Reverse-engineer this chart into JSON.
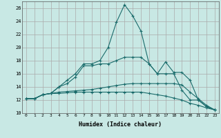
{
  "xlabel": "Humidex (Indice chaleur)",
  "bg_color": "#c8e8e4",
  "grid_color": "#aaaaaa",
  "line_color": "#1a6b6b",
  "xlim": [
    -0.5,
    23.5
  ],
  "ylim": [
    10,
    27
  ],
  "yticks": [
    10,
    12,
    14,
    16,
    18,
    20,
    22,
    24,
    26
  ],
  "xticks": [
    0,
    1,
    2,
    3,
    4,
    5,
    6,
    7,
    8,
    9,
    10,
    11,
    12,
    13,
    14,
    15,
    16,
    17,
    18,
    19,
    20,
    21,
    22,
    23
  ],
  "series": [
    [
      12.2,
      12.2,
      12.8,
      13.0,
      14.0,
      15.0,
      16.0,
      17.5,
      17.5,
      18.0,
      20.0,
      23.8,
      26.5,
      24.8,
      22.5,
      17.5,
      16.0,
      17.8,
      16.2,
      16.2,
      15.0,
      12.0,
      11.0,
      10.5
    ],
    [
      12.2,
      12.2,
      12.8,
      13.0,
      14.0,
      14.5,
      15.5,
      17.2,
      17.2,
      17.5,
      17.5,
      18.0,
      18.5,
      18.5,
      18.5,
      17.5,
      16.0,
      16.0,
      16.0,
      13.5,
      12.0,
      12.0,
      11.0,
      10.5
    ],
    [
      12.2,
      12.2,
      12.8,
      13.0,
      13.2,
      13.3,
      13.4,
      13.5,
      13.6,
      13.8,
      14.0,
      14.2,
      14.4,
      14.5,
      14.5,
      14.5,
      14.5,
      14.5,
      14.5,
      14.3,
      13.2,
      12.2,
      11.2,
      10.5
    ],
    [
      12.2,
      12.2,
      12.8,
      13.0,
      13.0,
      13.1,
      13.2,
      13.2,
      13.2,
      13.2,
      13.2,
      13.2,
      13.2,
      13.2,
      13.2,
      13.0,
      12.8,
      12.6,
      12.3,
      12.0,
      11.5,
      11.2,
      10.8,
      10.5
    ]
  ]
}
